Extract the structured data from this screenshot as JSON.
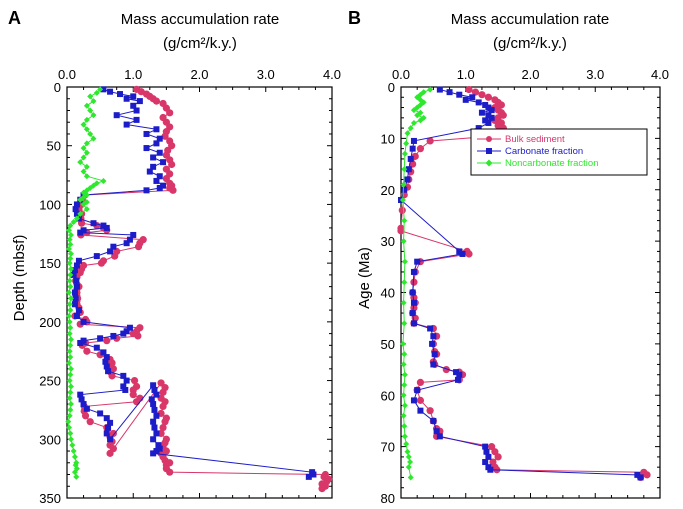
{
  "panels": [
    {
      "letter": "A",
      "title_line1": "Mass accumulation rate",
      "title_line2": "(g/cm²/k.y.)",
      "ylabel": "Depth (mbsf)"
    },
    {
      "letter": "B",
      "title_line1": "Mass accumulation rate",
      "title_line2": "(g/cm²/k.y.)",
      "ylabel": "Age (Ma)"
    }
  ],
  "legend": {
    "items": [
      {
        "label": "Bulk sediment",
        "color": "#d9366a",
        "marker": "circle"
      },
      {
        "label": "Carbonate fraction",
        "color": "#1c1cc8",
        "marker": "square"
      },
      {
        "label": "Noncarbonate fraction",
        "color": "#2ee82e",
        "marker": "diamond"
      }
    ],
    "position": "upper-right of panel B"
  },
  "colors": {
    "bulk": "#d9366a",
    "carbonate": "#1c1cc8",
    "noncarbonate": "#2ee82e"
  },
  "chart_data": [
    {
      "type": "line",
      "panel": "A",
      "xlim": [
        0,
        4
      ],
      "xticks": [
        "0.0",
        "1.0",
        "2.0",
        "3.0",
        "4.0"
      ],
      "ylim": [
        0,
        350
      ],
      "yticks": [
        "0",
        "50",
        "100",
        "150",
        "200",
        "250",
        "300",
        "350"
      ],
      "y_inverted": true,
      "x_axis_position": "top",
      "series": [
        {
          "name": "Bulk sediment",
          "x": [
            1.05,
            1.12,
            1.2,
            1.25,
            1.3,
            1.35,
            1.45,
            1.5,
            1.55,
            1.45,
            1.5,
            1.55,
            1.5,
            1.48,
            1.55,
            1.58,
            1.52,
            1.5,
            1.55,
            1.58,
            1.5,
            1.55,
            1.5,
            1.55,
            1.58,
            1.55,
            1.6,
            0.27,
            0.23,
            0.22,
            0.18,
            0.22,
            0.21,
            0.22,
            0.45,
            0.55,
            0.6,
            0.3,
            0.21,
            1.15,
            1.1,
            1.08,
            0.75,
            0.72,
            0.55,
            0.52,
            0.25,
            0.22,
            0.2,
            0.15,
            0.15,
            0.13,
            0.15,
            0.18,
            0.15,
            0.15,
            0.15,
            0.16,
            0.15,
            0.15,
            0.18,
            0.2,
            0.12,
            0.28,
            0.3,
            0.2,
            1.1,
            1.05,
            1.0,
            1.07,
            0.75,
            0.6,
            0.28,
            0.23,
            0.3,
            0.5,
            0.65,
            0.68,
            0.65,
            0.7,
            0.66,
            0.68,
            1.02,
            1.05,
            1.0,
            1.0,
            1.1,
            1.05,
            0.26,
            0.26,
            0.28,
            0.35,
            0.6,
            0.7,
            0.65,
            0.68,
            0.65,
            0.7,
            0.65,
            1.42,
            1.48,
            1.45,
            1.42,
            1.48,
            1.45,
            1.42,
            1.5,
            1.48,
            1.45,
            1.42,
            1.5,
            1.48,
            1.45,
            1.5,
            1.42,
            1.45,
            1.48,
            1.55,
            1.5,
            1.5,
            1.55,
            3.9,
            3.88,
            3.95,
            3.92,
            3.85,
            3.9,
            3.85
          ],
          "y": [
            2,
            4,
            6,
            8,
            10,
            12,
            14,
            18,
            22,
            26,
            30,
            34,
            38,
            42,
            46,
            50,
            54,
            58,
            62,
            66,
            70,
            74,
            78,
            82,
            84,
            86,
            88,
            92,
            96,
            100,
            104,
            108,
            112,
            116,
            118,
            120,
            122,
            124,
            126,
            130,
            133,
            136,
            140,
            144,
            148,
            150,
            152,
            155,
            158,
            160,
            162,
            165,
            168,
            170,
            172,
            175,
            178,
            180,
            182,
            185,
            188,
            192,
            195,
            198,
            200,
            202,
            205,
            208,
            210,
            212,
            214,
            216,
            218,
            220,
            225,
            228,
            232,
            235,
            238,
            240,
            243,
            246,
            250,
            255,
            258,
            262,
            265,
            268,
            272,
            276,
            280,
            285,
            290,
            295,
            298,
            302,
            305,
            308,
            312,
            252,
            256,
            260,
            265,
            268,
            272,
            278,
            282,
            285,
            290,
            295,
            300,
            303,
            306,
            310,
            312,
            315,
            318,
            320,
            322,
            325,
            328,
            330,
            332,
            334,
            336,
            338,
            340,
            342
          ]
        },
        {
          "name": "Carbonate fraction",
          "x": [
            0.55,
            0.65,
            0.8,
            1.0,
            0.9,
            1.1,
            1.0,
            1.05,
            0.75,
            1.05,
            0.9,
            1.35,
            1.2,
            1.4,
            1.35,
            1.2,
            1.4,
            1.3,
            1.45,
            1.3,
            1.25,
            1.4,
            1.35,
            1.45,
            1.4,
            1.2,
            0.25,
            0.2,
            0.15,
            0.13,
            0.15,
            0.18,
            0.4,
            0.55,
            0.6,
            0.25,
            0.2,
            1.0,
            0.95,
            0.9,
            0.7,
            0.65,
            0.45,
            0.18,
            0.15,
            0.12,
            0.1,
            0.14,
            0.15,
            0.12,
            0.13,
            0.12,
            0.18,
            0.15,
            0.25,
            0.95,
            0.9,
            0.85,
            0.7,
            0.5,
            0.25,
            0.2,
            0.45,
            0.55,
            0.6,
            0.58,
            0.6,
            0.62,
            0.85,
            0.9,
            0.85,
            0.88,
            0.2,
            0.22,
            0.25,
            0.3,
            0.5,
            0.6,
            0.65,
            0.62,
            0.6,
            0.65,
            1.3,
            1.32,
            1.35,
            1.28,
            1.3,
            1.32,
            1.35,
            1.3,
            1.32,
            1.35,
            1.3,
            1.38,
            1.4,
            1.35,
            1.3,
            3.7,
            3.72,
            3.65
          ],
          "y": [
            2,
            4,
            6,
            8,
            10,
            12,
            16,
            20,
            24,
            28,
            32,
            36,
            40,
            44,
            48,
            52,
            56,
            60,
            64,
            68,
            72,
            76,
            80,
            84,
            86,
            88,
            92,
            96,
            100,
            104,
            108,
            112,
            116,
            118,
            120,
            122,
            124,
            126,
            130,
            133,
            136,
            140,
            144,
            148,
            152,
            156,
            160,
            165,
            170,
            175,
            180,
            185,
            190,
            195,
            200,
            205,
            208,
            210,
            212,
            214,
            216,
            218,
            222,
            226,
            230,
            234,
            238,
            242,
            246,
            250,
            255,
            258,
            262,
            266,
            270,
            274,
            278,
            282,
            286,
            290,
            295,
            300,
            254,
            258,
            262,
            266,
            270,
            275,
            280,
            285,
            290,
            295,
            300,
            305,
            308,
            310,
            312,
            328,
            330,
            332
          ]
        },
        {
          "name": "Noncarbonate fraction",
          "x": [
            0.5,
            0.45,
            0.35,
            0.4,
            0.3,
            0.35,
            0.4,
            0.3,
            0.25,
            0.3,
            0.35,
            0.4,
            0.3,
            0.25,
            0.3,
            0.25,
            0.2,
            0.3,
            0.25,
            0.3,
            0.55,
            0.45,
            0.4,
            0.35,
            0.3,
            0.25,
            0.3,
            0.25,
            0.2,
            0.3,
            0.25,
            0.3,
            0.2,
            0.15,
            0.1,
            0.05,
            0.03,
            0.06,
            0.04,
            0.05,
            0.03,
            0.06,
            0.05,
            0.04,
            0.06,
            0.05,
            0.04,
            0.05,
            0.03,
            0.06,
            0.04,
            0.05,
            0.03,
            0.04,
            0.05,
            0.04,
            0.06,
            0.05,
            0.04,
            0.05,
            0.03,
            0.06,
            0.05,
            0.04,
            0.06,
            0.05,
            0.04,
            0.06,
            0.05,
            0.04,
            0.02,
            0.03,
            0.05,
            0.06,
            0.08,
            0.1,
            0.12,
            0.14,
            0.13,
            0.15,
            0.12,
            0.14
          ],
          "y": [
            2,
            5,
            8,
            12,
            16,
            20,
            24,
            28,
            32,
            36,
            40,
            44,
            48,
            52,
            56,
            60,
            64,
            68,
            72,
            76,
            80,
            82,
            84,
            86,
            88,
            90,
            92,
            94,
            96,
            98,
            100,
            104,
            108,
            112,
            115,
            118,
            122,
            126,
            130,
            134,
            138,
            142,
            146,
            150,
            155,
            160,
            165,
            170,
            175,
            180,
            185,
            190,
            195,
            200,
            205,
            210,
            215,
            220,
            225,
            230,
            235,
            240,
            245,
            250,
            255,
            260,
            265,
            270,
            275,
            280,
            285,
            290,
            295,
            300,
            305,
            310,
            315,
            320,
            322,
            325,
            328,
            332
          ]
        }
      ]
    },
    {
      "type": "line",
      "panel": "B",
      "xlim": [
        0,
        4
      ],
      "xticks": [
        "0.0",
        "1.0",
        "2.0",
        "3.0",
        "4.0"
      ],
      "ylim": [
        0,
        80
      ],
      "yticks": [
        "0",
        "10",
        "20",
        "30",
        "40",
        "50",
        "60",
        "70",
        "80"
      ],
      "y_inverted": true,
      "x_axis_position": "top",
      "series": [
        {
          "name": "Bulk sediment",
          "x": [
            1.05,
            1.15,
            1.25,
            1.35,
            1.45,
            1.5,
            1.55,
            1.45,
            1.5,
            1.55,
            1.58,
            1.5,
            1.45,
            1.55,
            1.5,
            1.58,
            1.55,
            1.52,
            1.5,
            0.45,
            0.3,
            0.22,
            0.18,
            0.15,
            0.12,
            0.1,
            0.05,
            0.02,
            0.0,
            0.0,
            1.02,
            1.05,
            0.3,
            0.22,
            0.2,
            0.18,
            0.2,
            0.22,
            0.2,
            0.18,
            0.22,
            0.2,
            0.5,
            0.55,
            0.5,
            0.52,
            0.55,
            0.5,
            0.52,
            0.7,
            0.9,
            0.95,
            0.9,
            0.3,
            0.25,
            0.3,
            0.45,
            0.5,
            0.55,
            0.6,
            0.55,
            1.4,
            1.45,
            1.5,
            1.42,
            1.45,
            1.48,
            3.75,
            3.8,
            3.7
          ],
          "y": [
            0.5,
            1,
            1.5,
            2,
            2.5,
            3,
            3.5,
            4,
            4.5,
            5,
            5.5,
            6,
            6.5,
            7,
            7.5,
            8,
            8.5,
            9,
            9.5,
            10.5,
            12,
            13.5,
            15,
            16.5,
            18,
            19.5,
            21,
            24,
            27.5,
            28,
            32,
            32.5,
            34,
            36,
            38,
            40,
            41,
            42,
            43,
            44,
            45,
            46,
            47,
            48.5,
            50,
            51.5,
            52,
            53.5,
            54,
            55,
            55.5,
            56,
            57,
            57.5,
            59,
            61,
            63,
            65,
            66.5,
            67,
            68,
            70,
            71,
            72,
            73,
            74,
            74.5,
            75,
            75.5,
            76
          ]
        },
        {
          "name": "Carbonate fraction",
          "x": [
            0.6,
            0.75,
            0.9,
            1.1,
            1.0,
            1.2,
            1.3,
            1.35,
            1.4,
            1.25,
            1.35,
            1.4,
            1.3,
            1.35,
            1.2,
            0.2,
            0.18,
            0.15,
            0.12,
            0.1,
            0.05,
            0.0,
            0.9,
            0.95,
            0.25,
            0.2,
            0.18,
            0.2,
            0.18,
            0.2,
            0.45,
            0.5,
            0.48,
            0.52,
            0.5,
            0.85,
            0.9,
            0.88,
            0.25,
            0.2,
            0.3,
            0.5,
            0.55,
            0.6,
            1.3,
            1.32,
            1.35,
            1.3,
            1.35,
            1.38,
            3.65,
            3.7
          ],
          "y": [
            0.5,
            1,
            1.5,
            2,
            2.5,
            3,
            3.5,
            4,
            4.5,
            5,
            5.5,
            6,
            6.5,
            7,
            8,
            10.5,
            12,
            14,
            16,
            18,
            20,
            22,
            32,
            32.5,
            34,
            36,
            40,
            42,
            44,
            46,
            47,
            48.5,
            50,
            52,
            54,
            55.5,
            56,
            57,
            59,
            61,
            63,
            65,
            67,
            68,
            70,
            71,
            72,
            73,
            74,
            74.5,
            75.5,
            76
          ]
        },
        {
          "name": "Noncarbonate fraction",
          "x": [
            0.45,
            0.35,
            0.3,
            0.25,
            0.3,
            0.35,
            0.3,
            0.25,
            0.2,
            0.3,
            0.25,
            0.35,
            0.3,
            0.2,
            0.15,
            0.1,
            0.08,
            0.06,
            0.05,
            0.04,
            0.03,
            0.05,
            0.04,
            0.06,
            0.05,
            0.04,
            0.05,
            0.03,
            0.05,
            0.04,
            0.06,
            0.05,
            0.04,
            0.06,
            0.04,
            0.05,
            0.06,
            0.08,
            0.1,
            0.12,
            0.14,
            0.12,
            0.15
          ],
          "y": [
            0.5,
            1,
            1.5,
            2,
            2.5,
            3,
            3.5,
            4,
            4.5,
            5,
            5.5,
            6,
            6.5,
            7,
            8,
            9,
            11,
            13,
            16,
            19,
            22,
            26,
            30,
            34,
            38,
            42,
            46,
            50,
            52,
            54,
            56,
            58,
            60,
            62,
            64,
            66,
            68,
            69.5,
            71,
            72,
            73,
            74,
            76
          ]
        }
      ]
    }
  ]
}
